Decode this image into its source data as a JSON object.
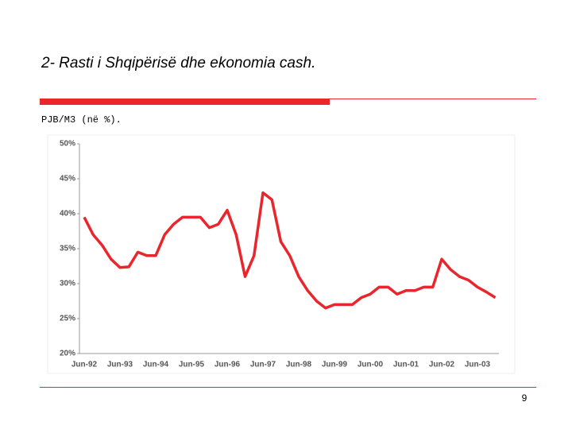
{
  "slide": {
    "title": "2- Rasti i Shqipërisë dhe ekonomia cash.",
    "subtitle": "PJB/M3 (në %).",
    "page_number": "9"
  },
  "chart_data": {
    "type": "line",
    "categories": [
      "Jun-92",
      null,
      null,
      null,
      "Jun-93",
      null,
      null,
      null,
      "Jun-94",
      null,
      null,
      null,
      "Jun-95",
      null,
      null,
      null,
      "Jun-96",
      null,
      null,
      null,
      "Jun-97",
      null,
      null,
      null,
      "Jun-98",
      null,
      null,
      null,
      "Jun-99",
      null,
      null,
      null,
      "Jun-00",
      null,
      null,
      null,
      "Jun-01",
      null,
      null,
      null,
      "Jun-02",
      null,
      null,
      null,
      "Jun-03",
      null,
      null
    ],
    "series": [
      {
        "color": "#e8262b",
        "values": [
          39.5,
          37,
          35.5,
          33.5,
          32.3,
          32.4,
          34.5,
          34,
          34,
          37,
          38.5,
          39.5,
          39.5,
          39.5,
          38,
          38.5,
          40.5,
          37,
          31,
          34,
          43,
          42,
          36,
          34,
          31,
          29,
          27.5,
          26.5,
          27,
          27,
          27,
          28,
          28.5,
          29.5,
          29.5,
          28.5,
          29,
          29,
          29.5,
          29.5,
          33.5,
          32,
          31,
          30.5,
          29.5,
          28.8,
          28
        ]
      }
    ],
    "ylim": [
      20,
      50
    ],
    "yticks": [
      {
        "value": 20,
        "label": "20%"
      },
      {
        "value": 25,
        "label": "25%"
      },
      {
        "value": 30,
        "label": "30%"
      },
      {
        "value": 35,
        "label": "35%"
      },
      {
        "value": 40,
        "label": "40%"
      },
      {
        "value": 45,
        "label": "45%"
      },
      {
        "value": 50,
        "label": "50%"
      }
    ],
    "grid": false
  }
}
